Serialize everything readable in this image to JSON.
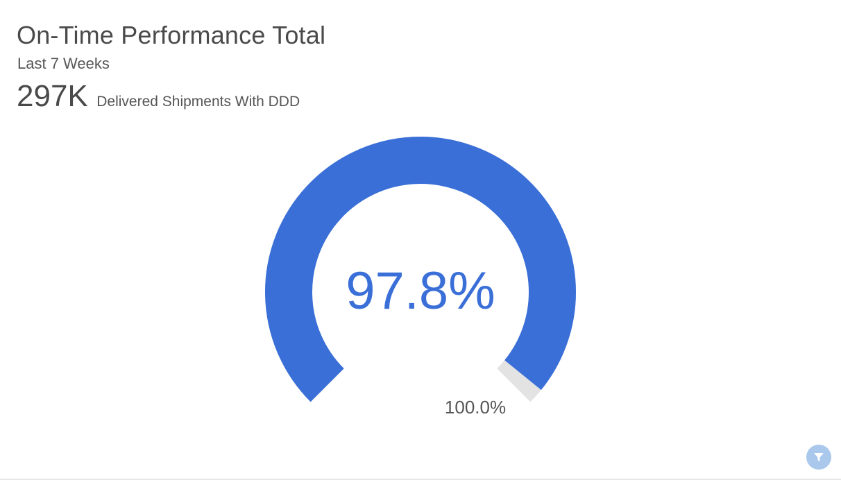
{
  "header": {
    "title": "On-Time Performance Total",
    "subtitle": "Last 7 Weeks",
    "kpi_value": "297K",
    "kpi_label": "Delivered Shipments With DDD"
  },
  "chart_data": {
    "type": "gauge",
    "value": 97.8,
    "value_label": "97.8%",
    "target": 100.0,
    "target_label": "100.0%",
    "min": 0,
    "max": 100,
    "colors": {
      "fill": "#3a6fd8",
      "track": "#e3e3e3"
    }
  },
  "controls": {
    "filter_icon": "filter-icon"
  }
}
